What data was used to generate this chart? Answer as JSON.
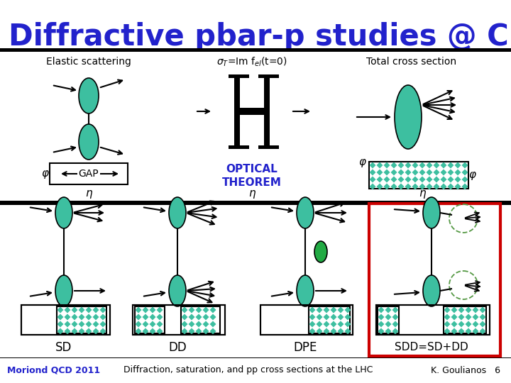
{
  "title": "Diffractive pbar-p studies @ CDF",
  "title_color": "#2222cc",
  "bg_color": "#ffffff",
  "teal_color": "#3dbfa0",
  "green_center": "#22aa44",
  "arrow_color": "#000000",
  "blue_text": "#2222cc",
  "red_border": "#cc0000",
  "footer_text_left": "Moriond QCD 2011",
  "footer_text_mid": "Diffraction, saturation, and pp cross sections at the LHC",
  "footer_text_right": "K. Goulianos   6",
  "label_elastic": "Elastic scattering",
  "label_sigma": "σₜ=Im fₑₗ(t=0)",
  "label_total": "Total cross section",
  "label_gap": "GAP",
  "label_optical": "OPTICAL\nTHEOREM",
  "label_phi": "φ",
  "label_eta": "η",
  "label_SD": "SD",
  "label_DD": "DD",
  "label_DPE": "DPE",
  "label_SDD": "SDD=SD+DD"
}
